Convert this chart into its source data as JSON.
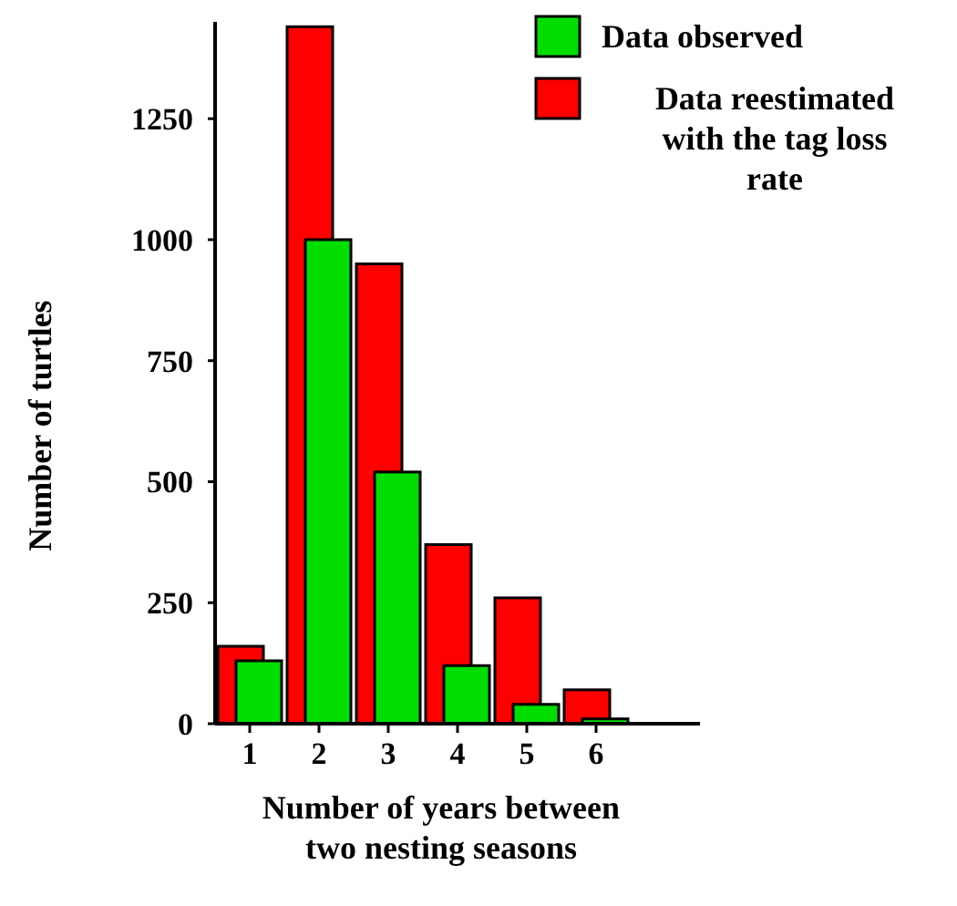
{
  "chart_data": {
    "type": "bar",
    "xlabel": "Number of years between two nesting seasons",
    "ylabel": "Number of turtles",
    "categories": [
      "1",
      "2",
      "3",
      "4",
      "5",
      "6"
    ],
    "series": [
      {
        "name": "Data observed",
        "color": "#00dd00",
        "values": [
          130,
          1000,
          520,
          120,
          40,
          10
        ]
      },
      {
        "name": "Data reestimated with the tag loss rate",
        "color": "#ff0000",
        "values": [
          160,
          1440,
          950,
          370,
          260,
          70
        ]
      }
    ],
    "ylim": [
      0,
      1450
    ],
    "yticks": [
      0,
      250,
      500,
      750,
      1000,
      1250
    ],
    "grid": false,
    "legend": "top right"
  }
}
